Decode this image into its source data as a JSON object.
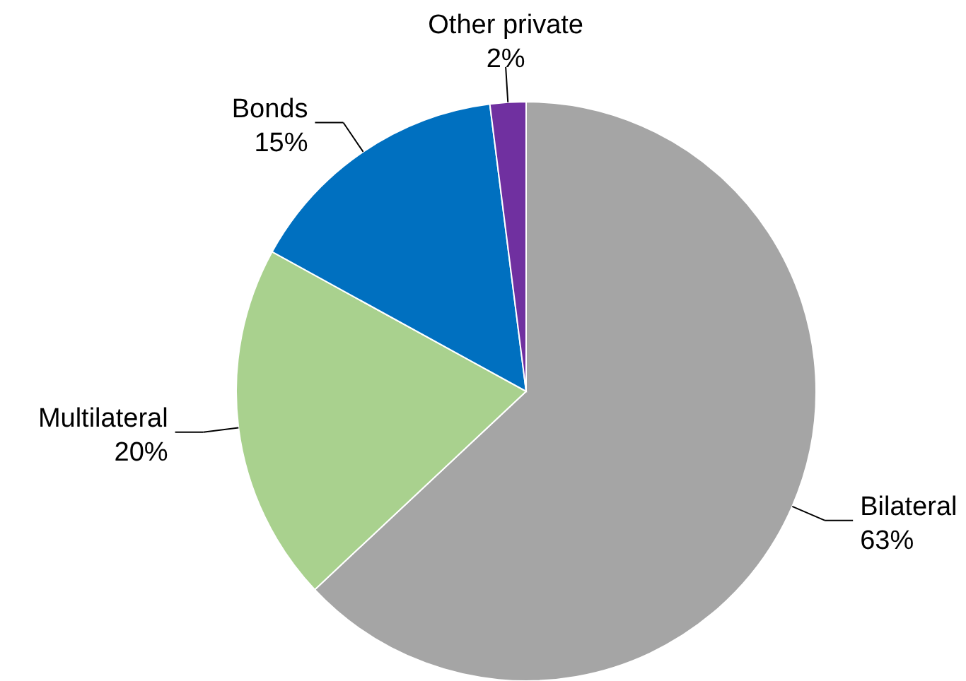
{
  "chart_data": {
    "type": "pie",
    "categories": [
      "Bilateral",
      "Multilateral",
      "Bonds",
      "Other private"
    ],
    "values": [
      63,
      20,
      15,
      2
    ],
    "colors": [
      "#a5a5a5",
      "#a9d18e",
      "#0070c0",
      "#7030a0"
    ],
    "value_labels": [
      "63%",
      "20%",
      "15%",
      "2%"
    ],
    "legend": false
  }
}
